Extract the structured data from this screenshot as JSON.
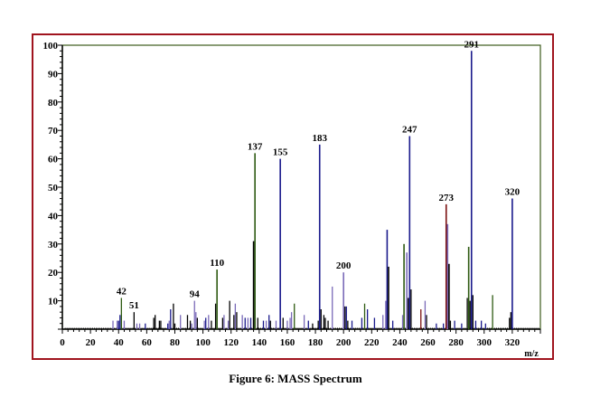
{
  "caption": "Figure 6: MASS Spectrum",
  "chart_data": {
    "type": "bar",
    "title": "",
    "xlabel": "m/z",
    "ylabel": "",
    "xlim": [
      0,
      340
    ],
    "ylim": [
      0,
      100
    ],
    "xticks": [
      0,
      20,
      40,
      60,
      80,
      100,
      120,
      140,
      160,
      180,
      200,
      220,
      240,
      260,
      280,
      300,
      320
    ],
    "yticks": [
      10,
      20,
      30,
      40,
      50,
      60,
      70,
      80,
      90,
      100
    ],
    "colors": {
      "k": "#000000",
      "b": "#1a1a8c",
      "g": "#2e5a12",
      "p": "#7a6ab8",
      "r": "#7a1010"
    },
    "peaks": [
      [
        36,
        3,
        "p"
      ],
      [
        39,
        3,
        "p"
      ],
      [
        40,
        3,
        "b"
      ],
      [
        41,
        5,
        "b"
      ],
      [
        42,
        11,
        "g"
      ],
      [
        44,
        3,
        "p"
      ],
      [
        51,
        6,
        "k"
      ],
      [
        53,
        2,
        "p"
      ],
      [
        55,
        2,
        "p"
      ],
      [
        59,
        2,
        "b"
      ],
      [
        65,
        4,
        "k"
      ],
      [
        66,
        5,
        "k"
      ],
      [
        69,
        3,
        "k"
      ],
      [
        70,
        3,
        "k"
      ],
      [
        75,
        2,
        "b"
      ],
      [
        76,
        3,
        "p"
      ],
      [
        77,
        7,
        "b"
      ],
      [
        79,
        9,
        "k"
      ],
      [
        80,
        2,
        "k"
      ],
      [
        84,
        5,
        "p"
      ],
      [
        89,
        5,
        "k"
      ],
      [
        91,
        3,
        "k"
      ],
      [
        92,
        2,
        "p"
      ],
      [
        94,
        10,
        "p"
      ],
      [
        95,
        6,
        "p"
      ],
      [
        96,
        4,
        "k"
      ],
      [
        101,
        3,
        "p"
      ],
      [
        102,
        4,
        "b"
      ],
      [
        104,
        5,
        "p"
      ],
      [
        106,
        3,
        "k"
      ],
      [
        109,
        9,
        "k"
      ],
      [
        110,
        21,
        "g"
      ],
      [
        114,
        4,
        "k"
      ],
      [
        115,
        5,
        "p"
      ],
      [
        118,
        3,
        "p"
      ],
      [
        119,
        10,
        "k"
      ],
      [
        122,
        5,
        "k"
      ],
      [
        123,
        9,
        "p"
      ],
      [
        124,
        6,
        "k"
      ],
      [
        128,
        5,
        "p"
      ],
      [
        130,
        4,
        "b"
      ],
      [
        132,
        4,
        "p"
      ],
      [
        134,
        4,
        "b"
      ],
      [
        136,
        31,
        "k"
      ],
      [
        137,
        62,
        "g"
      ],
      [
        139,
        4,
        "k"
      ],
      [
        143,
        3,
        "b"
      ],
      [
        145,
        3,
        "p"
      ],
      [
        147,
        5,
        "b"
      ],
      [
        148,
        3,
        "k"
      ],
      [
        152,
        3,
        "p"
      ],
      [
        155,
        60,
        "b"
      ],
      [
        157,
        4,
        "k"
      ],
      [
        160,
        3,
        "p"
      ],
      [
        162,
        4,
        "p"
      ],
      [
        163,
        6,
        "p"
      ],
      [
        165,
        9,
        "g"
      ],
      [
        172,
        5,
        "p"
      ],
      [
        175,
        3,
        "b"
      ],
      [
        178,
        2,
        "k"
      ],
      [
        182,
        3,
        "k"
      ],
      [
        183,
        65,
        "b"
      ],
      [
        184,
        7,
        "k"
      ],
      [
        186,
        5,
        "k"
      ],
      [
        187,
        4,
        "k"
      ],
      [
        189,
        3,
        "k"
      ],
      [
        192,
        15,
        "p"
      ],
      [
        200,
        20,
        "p"
      ],
      [
        201,
        8,
        "k"
      ],
      [
        202,
        8,
        "b"
      ],
      [
        203,
        3,
        "k"
      ],
      [
        206,
        3,
        "b"
      ],
      [
        213,
        4,
        "b"
      ],
      [
        215,
        9,
        "g"
      ],
      [
        217,
        7,
        "b"
      ],
      [
        222,
        4,
        "b"
      ],
      [
        228,
        5,
        "p"
      ],
      [
        230,
        10,
        "p"
      ],
      [
        231,
        35,
        "b"
      ],
      [
        232,
        22,
        "k"
      ],
      [
        235,
        3,
        "b"
      ],
      [
        242,
        5,
        "p"
      ],
      [
        243,
        30,
        "g"
      ],
      [
        245,
        27,
        "p"
      ],
      [
        246,
        11,
        "k"
      ],
      [
        247,
        68,
        "b"
      ],
      [
        248,
        14,
        "k"
      ],
      [
        255,
        7,
        "r"
      ],
      [
        258,
        10,
        "p"
      ],
      [
        259,
        5,
        "k"
      ],
      [
        266,
        2,
        "b"
      ],
      [
        271,
        2,
        "b"
      ],
      [
        273,
        44,
        "r"
      ],
      [
        274,
        37,
        "p"
      ],
      [
        275,
        23,
        "k"
      ],
      [
        276,
        3,
        "k"
      ],
      [
        279,
        3,
        "b"
      ],
      [
        284,
        2,
        "b"
      ],
      [
        288,
        11,
        "k"
      ],
      [
        289,
        29,
        "g"
      ],
      [
        290,
        10,
        "k"
      ],
      [
        291,
        98,
        "b"
      ],
      [
        292,
        12,
        "k"
      ],
      [
        294,
        3,
        "b"
      ],
      [
        298,
        3,
        "b"
      ],
      [
        301,
        2,
        "b"
      ],
      [
        306,
        12,
        "g"
      ],
      [
        318,
        4,
        "k"
      ],
      [
        319,
        6,
        "k"
      ],
      [
        320,
        46,
        "b"
      ]
    ],
    "labels": [
      {
        "mz": 42,
        "text": "42",
        "y": 11
      },
      {
        "mz": 51,
        "text": "51",
        "y": 6
      },
      {
        "mz": 94,
        "text": "94",
        "y": 10
      },
      {
        "mz": 110,
        "text": "110",
        "y": 21
      },
      {
        "mz": 137,
        "text": "137",
        "y": 62
      },
      {
        "mz": 155,
        "text": "155",
        "y": 60
      },
      {
        "mz": 183,
        "text": "183",
        "y": 65
      },
      {
        "mz": 200,
        "text": "200",
        "y": 20
      },
      {
        "mz": 247,
        "text": "247",
        "y": 68
      },
      {
        "mz": 273,
        "text": "273",
        "y": 44
      },
      {
        "mz": 291,
        "text": "291",
        "y": 98
      },
      {
        "mz": 320,
        "text": "320",
        "y": 46
      }
    ]
  }
}
